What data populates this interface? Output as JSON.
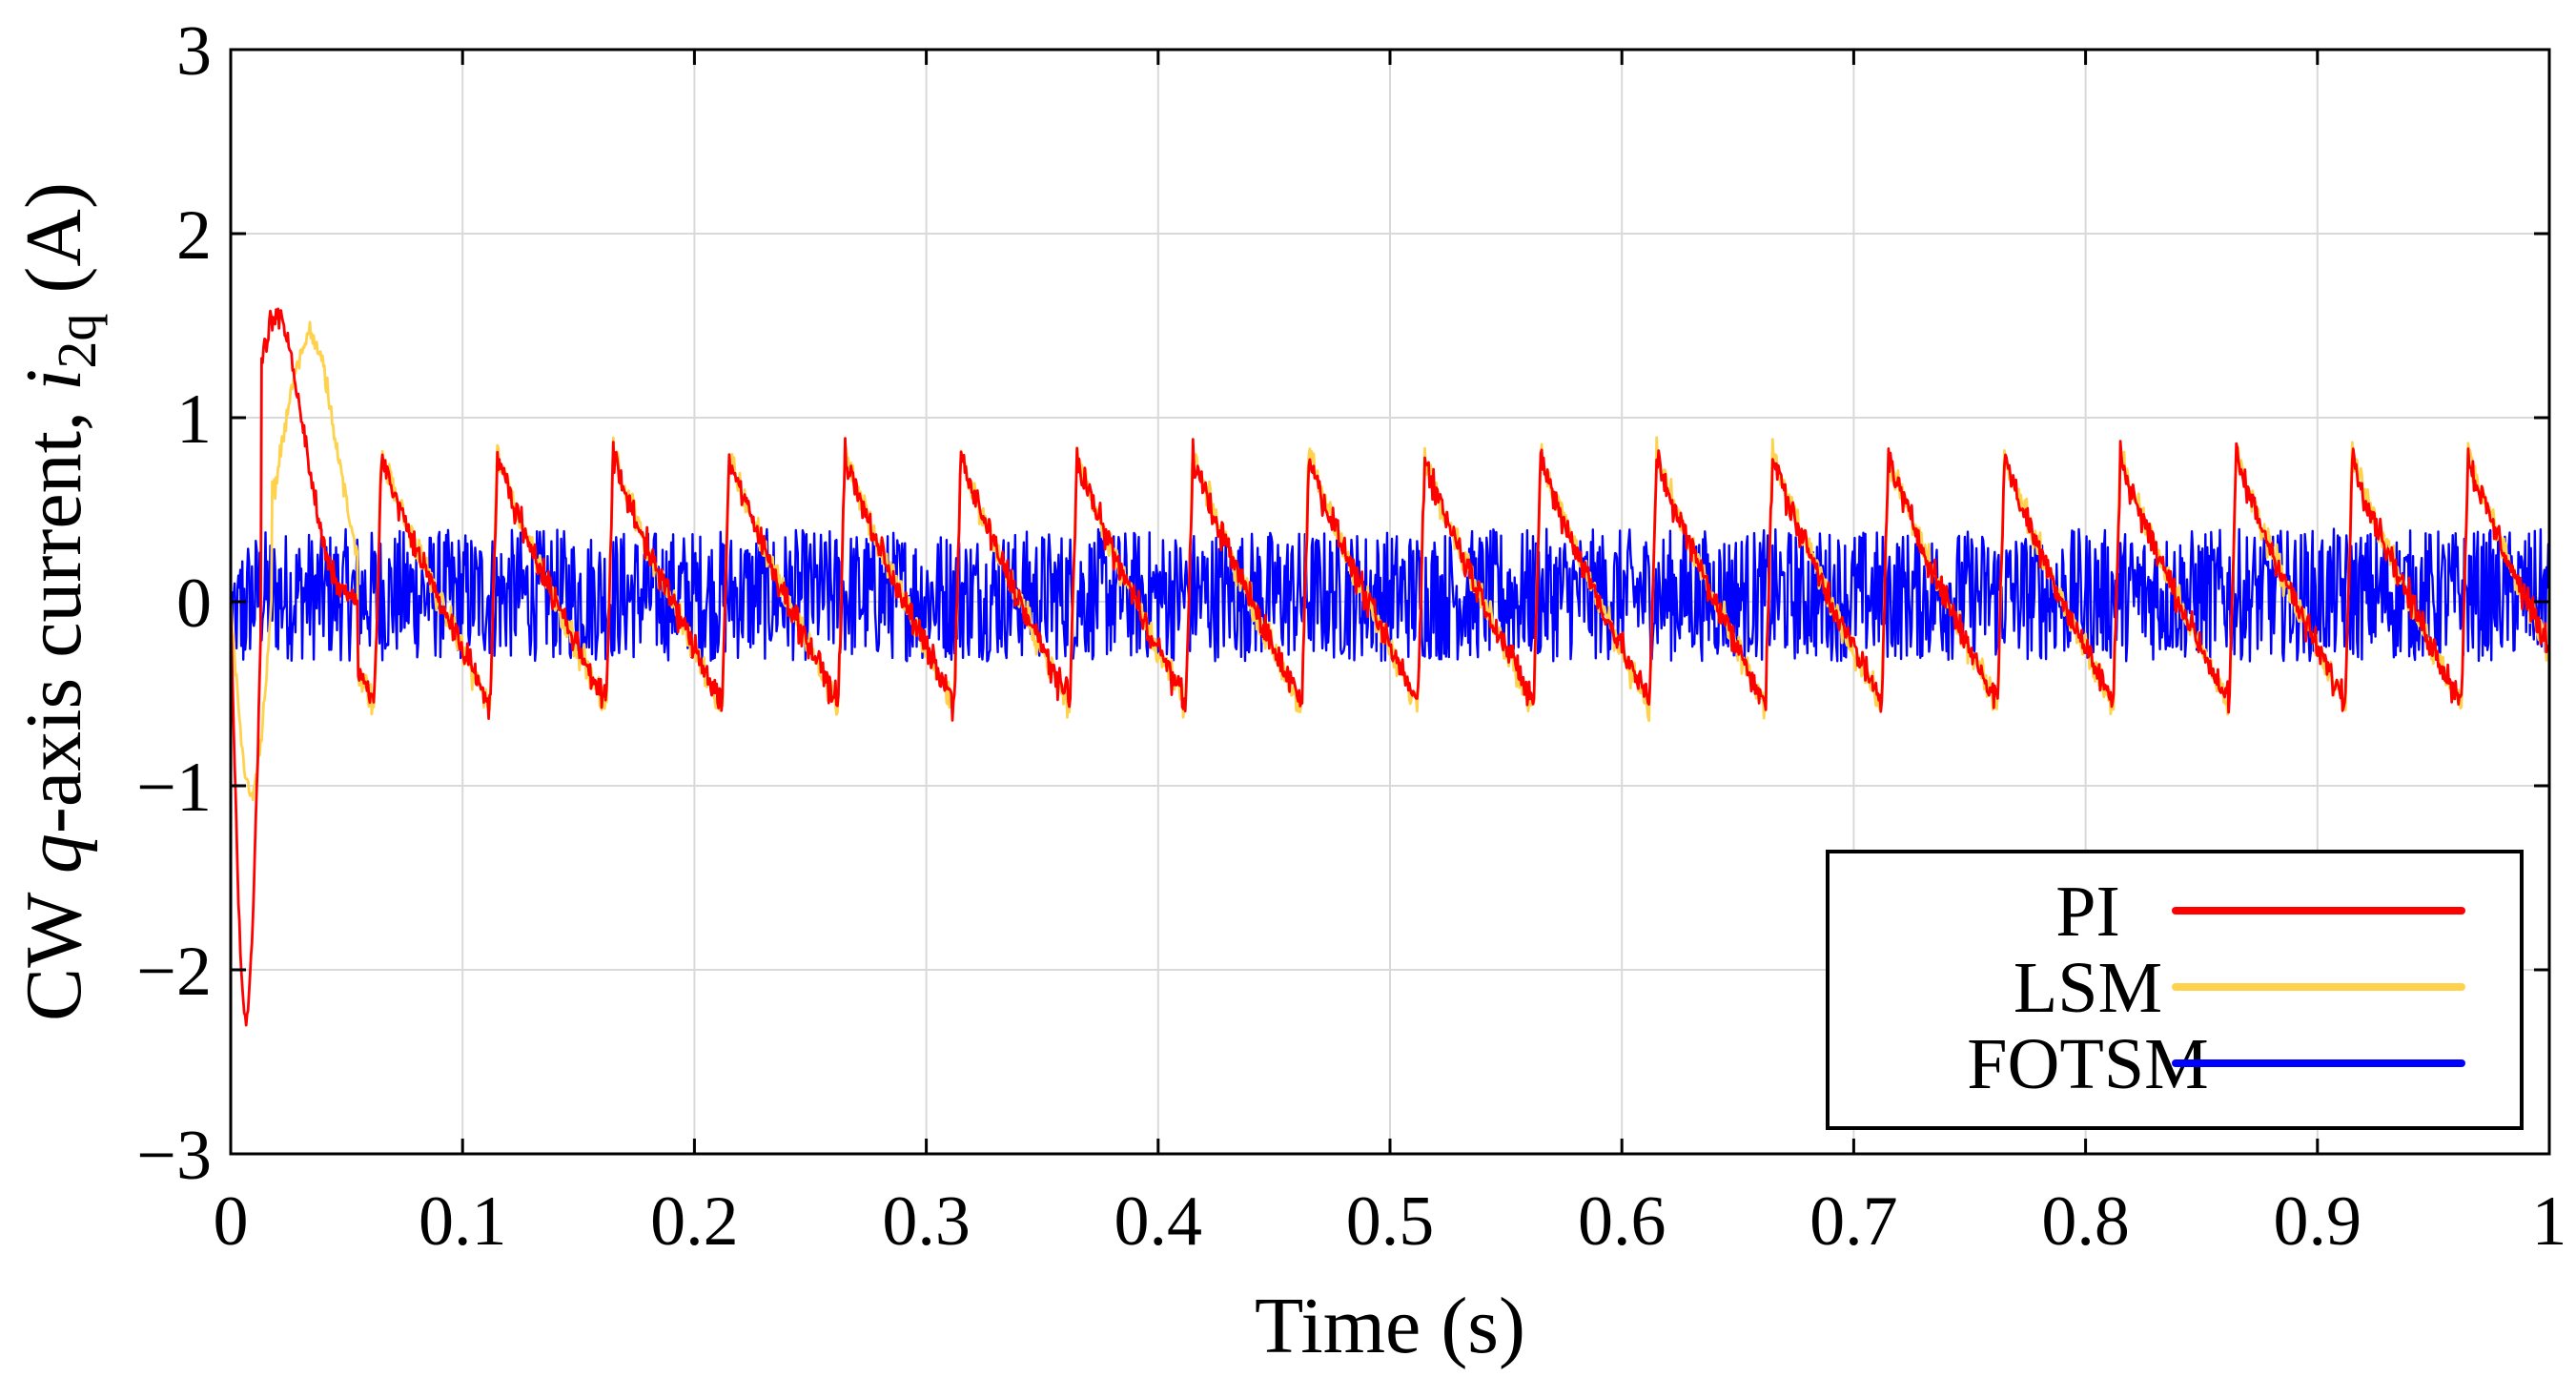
{
  "chart_data": {
    "type": "line",
    "title": "",
    "xlabel": "Time (s)",
    "ylabel": {
      "prefix": "CW ",
      "q": "q",
      "middle": "-axis current, ",
      "i": "i",
      "sub": "2q",
      "suffix": " (A)"
    },
    "xlim": [
      0,
      1
    ],
    "ylim": [
      -3,
      3
    ],
    "grid": true,
    "xticks": [
      0,
      0.1,
      0.2,
      0.3,
      0.4,
      0.5,
      0.6,
      0.7,
      0.8,
      0.9,
      1
    ],
    "xtick_labels": [
      "0",
      "0.1",
      "0.2",
      "0.3",
      "0.4",
      "0.5",
      "0.6",
      "0.7",
      "0.8",
      "0.9",
      "1"
    ],
    "yticks": [
      -3,
      -2,
      -1,
      0,
      1,
      2,
      3
    ],
    "ytick_labels": [
      "−3",
      "−2",
      "−1",
      "0",
      "1",
      "2",
      "3"
    ],
    "legend_position": "bottom-right",
    "series": [
      {
        "name": "PI",
        "color": "#ff0000",
        "description": "sawtooth oscillation with ~0.05 s period, peaks ~0.8 A, troughs ~-0.55 A; initial transient peak 1.55 A, dip -2.25 A",
        "period": 0.05,
        "peak": 0.8,
        "trough": -0.55,
        "noise": 0.12,
        "transient": {
          "dip_time": 0.006,
          "dip_value": -2.25,
          "peak_time": 0.02,
          "peak_value": 1.55
        }
      },
      {
        "name": "LSM",
        "color": "#ffd24d",
        "description": "nearly identical sawtooth to PI; initial transient peak 1.45 A, dip -1.05 A",
        "period": 0.05,
        "peak": 0.82,
        "trough": -0.57,
        "noise": 0.12,
        "transient": {
          "dip_time": 0.008,
          "dip_value": -1.05,
          "peak_time": 0.034,
          "peak_value": 1.45
        }
      },
      {
        "name": "FOTSM",
        "color": "#0000ff",
        "description": "high-frequency noise band centered at 0, roughly -0.35 to 0.4 A",
        "center": 0.0,
        "amplitude": 0.4,
        "transient": {
          "dip_time": 0.004,
          "dip_value": -0.5
        }
      }
    ]
  }
}
